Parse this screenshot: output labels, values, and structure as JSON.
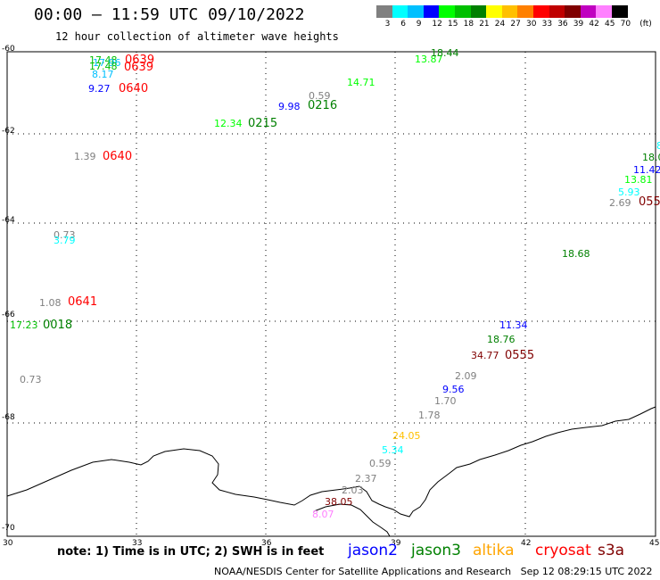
{
  "header": {
    "title": "00:00 – 11:59 UTC 09/10/2022",
    "subtitle": "12 hour collection of altimeter wave heights"
  },
  "colorbar": {
    "labels": [
      "3",
      "6",
      "9",
      "12",
      "15",
      "18",
      "21",
      "24",
      "27",
      "30",
      "33",
      "36",
      "39",
      "42",
      "45",
      "70",
      "(ft)"
    ],
    "colors": [
      "#808080",
      "#00ffff",
      "#00c0ff",
      "#0000ff",
      "#00ff00",
      "#00c000",
      "#008000",
      "#ffff00",
      "#ffc000",
      "#ff8000",
      "#ff0000",
      "#c00000",
      "#800000",
      "#c000c0",
      "#ff80ff",
      "#000000"
    ]
  },
  "axes": {
    "lat_labels": [
      "-60",
      "-62",
      "-64",
      "-66",
      "-68",
      "-70"
    ],
    "lon_labels": [
      "30",
      "33",
      "36",
      "39",
      "42",
      "45"
    ]
  },
  "observations": [
    {
      "text": "17.48",
      "color": "#00c000"
    },
    {
      "text": "0639",
      "color": "#ff0000"
    },
    {
      "text": "17.96",
      "color": "#00c0ff"
    },
    {
      "text": "17.48",
      "color": "#00c000"
    },
    {
      "text": "0639",
      "color": "#ff0000"
    },
    {
      "text": "8.17",
      "color": "#00c0ff"
    },
    {
      "text": "9.27",
      "color": "#0000ff"
    },
    {
      "text": "0640",
      "color": "#ff0000"
    },
    {
      "text": "13.87",
      "color": "#00ff00"
    },
    {
      "text": "18.44",
      "color": "#008000"
    },
    {
      "text": "14.71",
      "color": "#00ff00"
    },
    {
      "text": "0.59",
      "color": "#808080"
    },
    {
      "text": "9.98",
      "color": "#0000ff"
    },
    {
      "text": "0216",
      "color": "#008000"
    },
    {
      "text": "12.34",
      "color": "#00ff00"
    },
    {
      "text": "0215",
      "color": "#008000"
    },
    {
      "text": "1.39",
      "color": "#808080"
    },
    {
      "text": "0640",
      "color": "#ff0000"
    },
    {
      "text": "0.73",
      "color": "#808080"
    },
    {
      "text": "3.79",
      "color": "#00ffff"
    },
    {
      "text": "1.08",
      "color": "#808080"
    },
    {
      "text": "0641",
      "color": "#ff0000"
    },
    {
      "text": "17.23",
      "color": "#00c000"
    },
    {
      "text": "0018",
      "color": "#008000"
    },
    {
      "text": "0.73",
      "color": "#808080"
    },
    {
      "text": "8",
      "color": "#00ffff"
    },
    {
      "text": "18.0",
      "color": "#008000"
    },
    {
      "text": "11.42",
      "color": "#0000ff"
    },
    {
      "text": "13.81",
      "color": "#00ff00"
    },
    {
      "text": "5.93",
      "color": "#00ffff"
    },
    {
      "text": "2.69",
      "color": "#808080"
    },
    {
      "text": "055",
      "color": "#800000"
    },
    {
      "text": "18.68",
      "color": "#008000"
    },
    {
      "text": "11.34",
      "color": "#0000ff"
    },
    {
      "text": "18.76",
      "color": "#008000"
    },
    {
      "text": "34.77",
      "color": "#800000"
    },
    {
      "text": "0555",
      "color": "#800000"
    },
    {
      "text": "2.09",
      "color": "#808080"
    },
    {
      "text": "9.56",
      "color": "#0000ff"
    },
    {
      "text": "1.70",
      "color": "#808080"
    },
    {
      "text": "1.78",
      "color": "#808080"
    },
    {
      "text": "24.05",
      "color": "#ffc000"
    },
    {
      "text": "5.34",
      "color": "#00ffff"
    },
    {
      "text": "0.59",
      "color": "#808080"
    },
    {
      "text": "2.37",
      "color": "#808080"
    },
    {
      "text": "2.03",
      "color": "#808080"
    },
    {
      "text": "38.05",
      "color": "#800000"
    },
    {
      "text": "8.07",
      "color": "#ff80ff"
    }
  ],
  "footer": {
    "note": "note: 1) Time is in UTC; 2) SWH is in feet",
    "credit": "NOAA/NESDIS Center for Satellite Applications and Research   Sep 12 08:29:15 UTC 2022",
    "satellites": [
      {
        "name": "jason2",
        "color": "#0000ff"
      },
      {
        "name": "jason3",
        "color": "#008000"
      },
      {
        "name": "altika",
        "color": "#ffa500"
      },
      {
        "name": "cryosat",
        "color": "#ff0000"
      },
      {
        "name": "s3a",
        "color": "#800000"
      }
    ]
  }
}
